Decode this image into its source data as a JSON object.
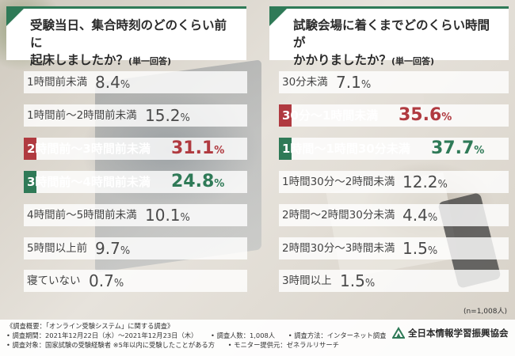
{
  "colors": {
    "accent_green": "#2f7a57",
    "accent_red": "#b03a40"
  },
  "chart_data": [
    {
      "type": "bar",
      "title": "受験当日、集合時刻のどのくらい前に起床しましたか？",
      "title_line1": "受験当日、集合時刻のどのくらい前に",
      "title_line2": "起床しましたか？",
      "note": "(単一回答)",
      "categories": [
        "1時間前未満",
        "1時間前〜2時間前未満",
        "2時間前〜3時間前未満",
        "3時間前〜4時間前未満",
        "4時間前〜5時間前未満",
        "5時間以上前",
        "寝ていない"
      ],
      "values": [
        8.4,
        15.2,
        31.1,
        24.8,
        10.1,
        9.7,
        0.7
      ],
      "unit": "%",
      "highlight": [
        "",
        "",
        "red",
        "green",
        "",
        "",
        ""
      ]
    },
    {
      "type": "bar",
      "title": "試験会場に着くまでどのくらい時間がかかりましたか？",
      "title_line1": "試験会場に着くまでどのくらい時間が",
      "title_line2": "かかりましたか？",
      "note": "(単一回答)",
      "categories": [
        "30分未満",
        "30分〜1時間未満",
        "1時間〜1時間30分未満",
        "1時間30分〜2時間未満",
        "2時間〜2時間30分未満",
        "2時間30分〜3時間未満",
        "3時間以上"
      ],
      "values": [
        7.1,
        35.6,
        37.7,
        12.2,
        4.4,
        1.5,
        1.5
      ],
      "unit": "%",
      "highlight": [
        "",
        "red",
        "green",
        "",
        "",
        "",
        ""
      ]
    }
  ],
  "sample_size": "(n=1,008人)",
  "footer": {
    "heading": "《調査概要：「オンライン受験システム」に関する調査》",
    "period": "• 調査期間：2021年12月22日（水）〜2021年12月23日（木）",
    "respondents": "• 調査人数：1,008人",
    "method": "• 調査方法：インターネット調査",
    "target": "• 調査対象：国家試験の受験経験者 ※5年以内に受験したことがある方",
    "provider": "• モニター提供元：ゼネラルリサーチ"
  },
  "organization": "全日本情報学習振興協会"
}
